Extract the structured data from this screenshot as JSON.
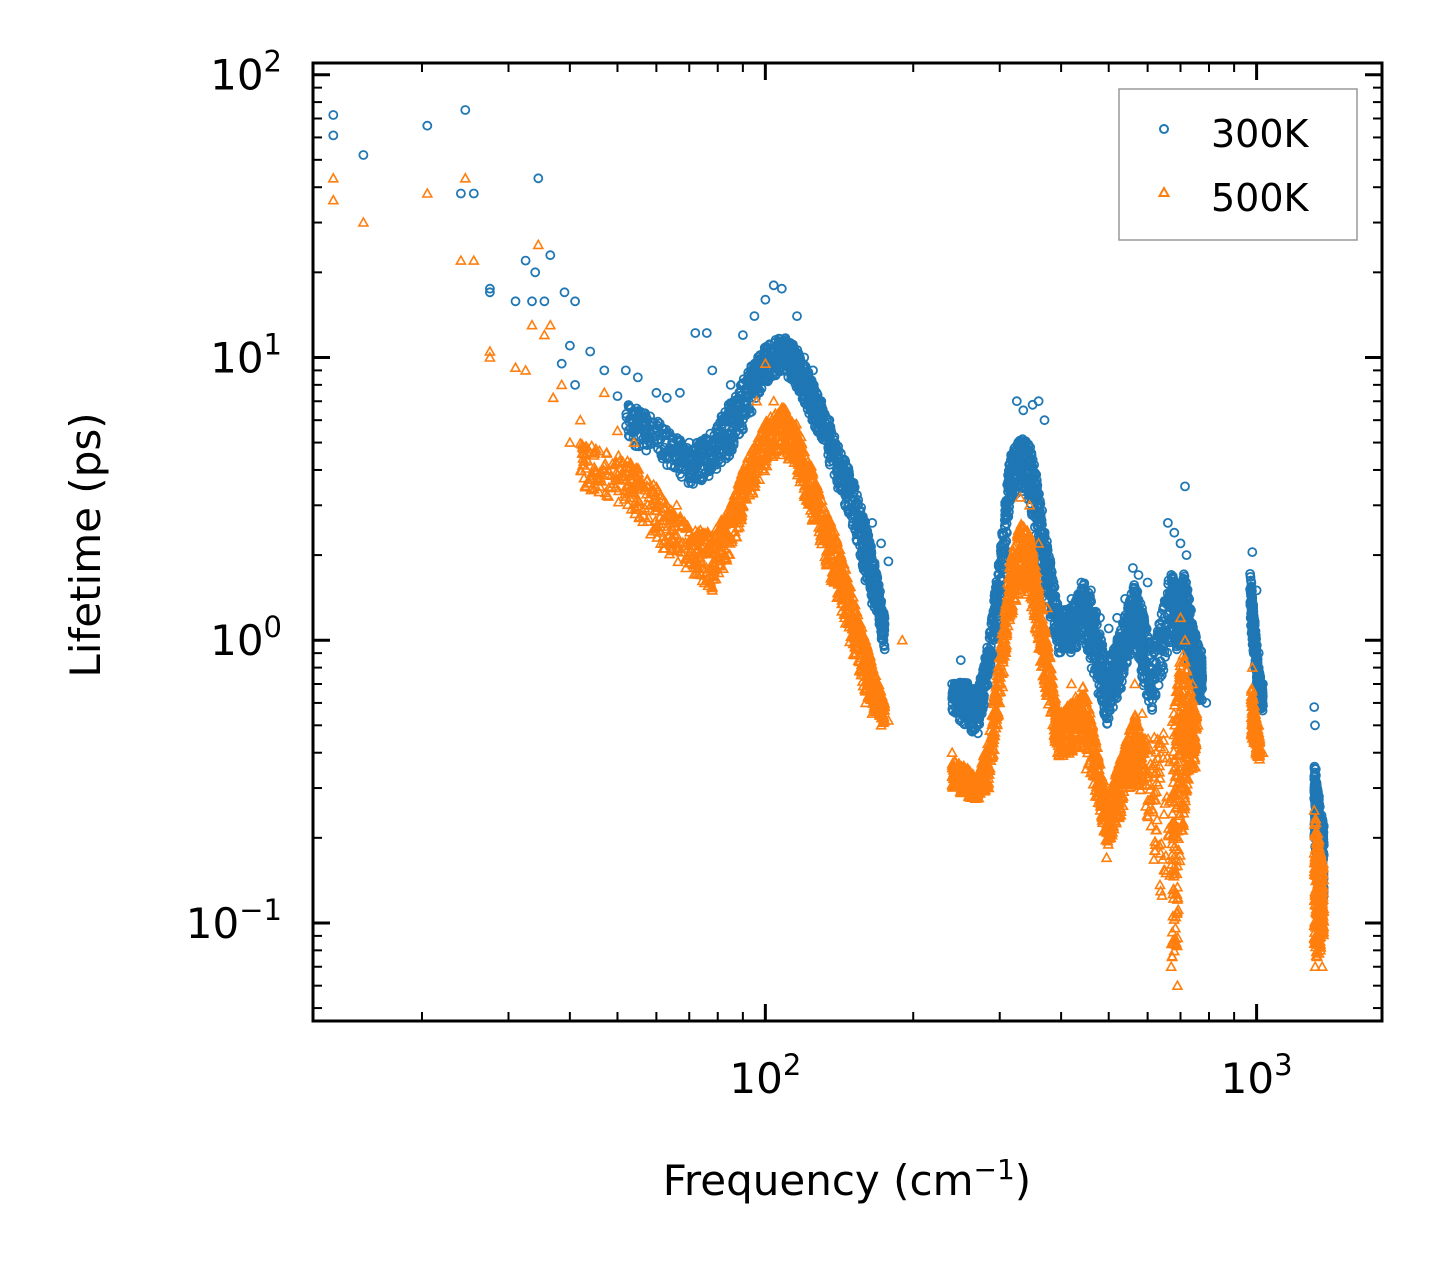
{
  "chart_data": {
    "type": "scatter",
    "title": "",
    "xlabel": "Frequency (cm⁻¹)",
    "xlabel_base": "Frequency (cm",
    "xlabel_sup": "−1",
    "xlabel_close": ")",
    "ylabel": "Lifetime (ps)",
    "xscale": "log",
    "yscale": "log",
    "xlim": [
      12,
      1800
    ],
    "ylim": [
      0.045,
      110
    ],
    "xticks": [
      {
        "base": "10",
        "exp": "2",
        "value": 100
      },
      {
        "base": "10",
        "exp": "3",
        "value": 1000
      }
    ],
    "yticks": [
      {
        "base": "10",
        "exp": "2",
        "value": 100
      },
      {
        "base": "10",
        "exp": "1",
        "value": 10
      },
      {
        "base": "10",
        "exp": "0",
        "value": 1
      },
      {
        "base": "10",
        "exp": "−1",
        "value": 0.1
      }
    ],
    "legend_position": "top-right",
    "series": [
      {
        "name": "300K",
        "color": "#1f77b4",
        "marker": "circle",
        "points": [
          [
            13.2,
            72
          ],
          [
            13.2,
            61
          ],
          [
            15.2,
            52
          ],
          [
            20.5,
            66
          ],
          [
            24.5,
            75
          ],
          [
            24,
            38
          ],
          [
            25.5,
            38
          ],
          [
            27.5,
            17.5
          ],
          [
            27.5,
            17
          ],
          [
            31,
            15.8
          ],
          [
            32.5,
            22
          ],
          [
            33.5,
            15.8
          ],
          [
            34,
            20
          ],
          [
            34.5,
            43
          ],
          [
            35.5,
            15.8
          ],
          [
            36.5,
            23
          ],
          [
            39,
            17
          ],
          [
            41,
            15.8
          ],
          [
            38.5,
            9.5
          ],
          [
            40,
            11
          ],
          [
            41,
            8
          ],
          [
            44,
            10.5
          ],
          [
            47,
            9
          ],
          [
            50,
            7.3
          ],
          [
            52,
            9
          ],
          [
            55,
            8.5
          ],
          [
            60,
            7.5
          ],
          [
            63,
            7.2
          ],
          [
            67,
            7.5
          ],
          [
            70,
            5
          ],
          [
            72,
            12.2
          ],
          [
            76,
            12.2
          ],
          [
            78,
            9
          ],
          [
            82,
            6
          ],
          [
            85,
            8
          ],
          [
            90,
            12
          ],
          [
            95,
            14
          ],
          [
            100,
            16
          ],
          [
            104,
            18
          ],
          [
            108,
            17.5
          ],
          [
            112,
            11
          ],
          [
            116,
            14
          ],
          [
            120,
            10
          ],
          [
            125,
            9
          ],
          [
            130,
            7
          ],
          [
            135,
            6
          ],
          [
            140,
            4
          ],
          [
            148,
            3.5
          ],
          [
            155,
            2.7
          ],
          [
            165,
            2.6
          ],
          [
            172,
            2.2
          ],
          [
            178,
            1.9
          ],
          [
            240,
            0.7
          ],
          [
            250,
            0.85
          ],
          [
            260,
            0.6
          ],
          [
            280,
            0.7
          ],
          [
            300,
            1.5
          ],
          [
            315,
            4
          ],
          [
            325,
            7
          ],
          [
            335,
            6.5
          ],
          [
            350,
            6.8
          ],
          [
            360,
            7
          ],
          [
            370,
            6
          ],
          [
            395,
            1.3
          ],
          [
            420,
            1.4
          ],
          [
            440,
            1.6
          ],
          [
            460,
            1.5
          ],
          [
            480,
            1.2
          ],
          [
            500,
            1.1
          ],
          [
            520,
            1.2
          ],
          [
            540,
            1.4
          ],
          [
            560,
            1.8
          ],
          [
            575,
            1.7
          ],
          [
            600,
            1.6
          ],
          [
            660,
            2.6
          ],
          [
            680,
            2.4
          ],
          [
            700,
            2.2
          ],
          [
            715,
            3.5
          ],
          [
            720,
            2
          ],
          [
            740,
            1
          ],
          [
            760,
            0.95
          ],
          [
            790,
            0.6
          ],
          [
            980,
            2.05
          ],
          [
            1000,
            1.5
          ],
          [
            1010,
            0.9
          ],
          [
            1030,
            0.7
          ],
          [
            1310,
            0.58
          ],
          [
            1315,
            0.5
          ],
          [
            1320,
            0.35
          ],
          [
            1340,
            0.28
          ],
          [
            1360,
            0.22
          ]
        ],
        "bands": [
          [
            40,
            10,
            6.5
          ],
          [
            52,
            7,
            5
          ],
          [
            60,
            6,
            4.5
          ],
          [
            70,
            4.8,
            3.5
          ],
          [
            78,
            5.5,
            3.8
          ],
          [
            85,
            7,
            4.5
          ],
          [
            92,
            9,
            6
          ],
          [
            100,
            11,
            8
          ],
          [
            108,
            12,
            9
          ],
          [
            115,
            11,
            8
          ],
          [
            122,
            9,
            6.5
          ],
          [
            130,
            7,
            5
          ],
          [
            140,
            5,
            3.5
          ],
          [
            150,
            3.8,
            2.6
          ],
          [
            160,
            2.6,
            1.6
          ],
          [
            168,
            1.8,
            1.2
          ],
          [
            175,
            1.2,
            0.9
          ],
          [
            240,
            0.7,
            0.55
          ],
          [
            255,
            0.72,
            0.5
          ],
          [
            270,
            0.65,
            0.45
          ],
          [
            285,
            1.0,
            0.7
          ],
          [
            300,
            2.0,
            1.3
          ],
          [
            315,
            4.5,
            3
          ],
          [
            330,
            5.2,
            3.5
          ],
          [
            345,
            5.0,
            3
          ],
          [
            360,
            3.5,
            2
          ],
          [
            375,
            2.2,
            1.3
          ],
          [
            395,
            1.3,
            0.9
          ],
          [
            420,
            1.3,
            0.9
          ],
          [
            445,
            1.6,
            1.0
          ],
          [
            470,
            1.3,
            0.7
          ],
          [
            495,
            0.8,
            0.5
          ],
          [
            520,
            1.0,
            0.6
          ],
          [
            545,
            1.3,
            0.8
          ],
          [
            565,
            1.6,
            1.0
          ],
          [
            585,
            1.3,
            0.7
          ],
          [
            615,
            0.9,
            0.55
          ],
          [
            670,
            1.8,
            1.0
          ],
          [
            690,
            1.5,
            0.9
          ],
          [
            710,
            1.8,
            1.0
          ],
          [
            730,
            1.4,
            0.8
          ],
          [
            755,
            1.0,
            0.6
          ],
          [
            775,
            0.9,
            0.6
          ],
          [
            970,
            1.8,
            1.2
          ],
          [
            990,
            1.2,
            0.8
          ],
          [
            1010,
            0.8,
            0.6
          ],
          [
            1030,
            0.65,
            0.55
          ],
          [
            1310,
            0.38,
            0.2
          ],
          [
            1330,
            0.3,
            0.15
          ],
          [
            1350,
            0.25,
            0.12
          ],
          [
            1370,
            0.22,
            0.12
          ]
        ]
      },
      {
        "name": "500K",
        "color": "#ff7f0e",
        "marker": "triangle",
        "points": [
          [
            13.2,
            43
          ],
          [
            13.2,
            36
          ],
          [
            15.2,
            30
          ],
          [
            20.5,
            38
          ],
          [
            24,
            22
          ],
          [
            24.5,
            43
          ],
          [
            25.5,
            22
          ],
          [
            27.5,
            10.5
          ],
          [
            27.5,
            10
          ],
          [
            31,
            9.2
          ],
          [
            32.5,
            9
          ],
          [
            33.5,
            13
          ],
          [
            34.5,
            25
          ],
          [
            35.5,
            12
          ],
          [
            36.5,
            13
          ],
          [
            37,
            7.2
          ],
          [
            38.5,
            8
          ],
          [
            40,
            5
          ],
          [
            42,
            6
          ],
          [
            45,
            4
          ],
          [
            47,
            7.5
          ],
          [
            50,
            5.5
          ],
          [
            54,
            5
          ],
          [
            58,
            3.2
          ],
          [
            62,
            2.2
          ],
          [
            66,
            3
          ],
          [
            70,
            2
          ],
          [
            74,
            1.7
          ],
          [
            78,
            1.5
          ],
          [
            82,
            2.5
          ],
          [
            90,
            4
          ],
          [
            96,
            7
          ],
          [
            100,
            9.5
          ],
          [
            104,
            7
          ],
          [
            108,
            6.5
          ],
          [
            112,
            6
          ],
          [
            116,
            5
          ],
          [
            120,
            4
          ],
          [
            126,
            3
          ],
          [
            132,
            2.3
          ],
          [
            138,
            1.6
          ],
          [
            145,
            1.2
          ],
          [
            152,
            0.9
          ],
          [
            160,
            0.6
          ],
          [
            165,
            0.55
          ],
          [
            172,
            0.5
          ],
          [
            178,
            0.52
          ],
          [
            190,
            1.0
          ],
          [
            240,
            0.4
          ],
          [
            255,
            0.35
          ],
          [
            270,
            0.28
          ],
          [
            285,
            0.3
          ],
          [
            300,
            0.6
          ],
          [
            315,
            1.8
          ],
          [
            330,
            3.2
          ],
          [
            345,
            3.0
          ],
          [
            360,
            2.2
          ],
          [
            375,
            1.3
          ],
          [
            390,
            0.5
          ],
          [
            420,
            0.7
          ],
          [
            450,
            0.35
          ],
          [
            470,
            0.28
          ],
          [
            495,
            0.17
          ],
          [
            520,
            0.28
          ],
          [
            545,
            0.42
          ],
          [
            565,
            0.7
          ],
          [
            585,
            0.55
          ],
          [
            670,
            0.07
          ],
          [
            690,
            0.06
          ],
          [
            700,
            1.2
          ],
          [
            715,
            1.0
          ],
          [
            740,
            0.7
          ],
          [
            760,
            0.5
          ],
          [
            980,
            0.8
          ],
          [
            1010,
            0.5
          ],
          [
            1030,
            0.4
          ],
          [
            1310,
            0.25
          ],
          [
            1340,
            0.09
          ],
          [
            1360,
            0.07
          ]
        ],
        "bands": [
          [
            42,
            5,
            3.5
          ],
          [
            52,
            4.5,
            3
          ],
          [
            60,
            3.5,
            2.2
          ],
          [
            70,
            2.5,
            1.7
          ],
          [
            78,
            2.4,
            1.5
          ],
          [
            85,
            3.0,
            2
          ],
          [
            92,
            4.5,
            3
          ],
          [
            100,
            6,
            4
          ],
          [
            108,
            6.8,
            4.5
          ],
          [
            115,
            6,
            4
          ],
          [
            122,
            4.5,
            3
          ],
          [
            130,
            3.2,
            2.1
          ],
          [
            140,
            2.3,
            1.4
          ],
          [
            150,
            1.5,
            0.9
          ],
          [
            160,
            1.0,
            0.65
          ],
          [
            168,
            0.75,
            0.55
          ],
          [
            175,
            0.6,
            0.5
          ],
          [
            240,
            0.38,
            0.3
          ],
          [
            255,
            0.36,
            0.28
          ],
          [
            270,
            0.33,
            0.27
          ],
          [
            285,
            0.45,
            0.3
          ],
          [
            300,
            0.9,
            0.55
          ],
          [
            315,
            1.9,
            1.2
          ],
          [
            330,
            2.6,
            1.5
          ],
          [
            345,
            2.4,
            1.4
          ],
          [
            360,
            1.6,
            0.9
          ],
          [
            375,
            1.0,
            0.6
          ],
          [
            395,
            0.55,
            0.38
          ],
          [
            420,
            0.6,
            0.4
          ],
          [
            445,
            0.7,
            0.42
          ],
          [
            470,
            0.45,
            0.28
          ],
          [
            495,
            0.28,
            0.18
          ],
          [
            520,
            0.35,
            0.22
          ],
          [
            545,
            0.45,
            0.28
          ],
          [
            565,
            0.55,
            0.33
          ],
          [
            585,
            0.45,
            0.28
          ],
          [
            670,
            0.5,
            0.07
          ],
          [
            690,
            0.8,
            0.07
          ],
          [
            710,
            0.9,
            0.2
          ],
          [
            730,
            0.7,
            0.35
          ],
          [
            755,
            0.55,
            0.35
          ],
          [
            975,
            0.7,
            0.45
          ],
          [
            995,
            0.55,
            0.4
          ],
          [
            1015,
            0.45,
            0.37
          ],
          [
            1310,
            0.25,
            0.07
          ],
          [
            1330,
            0.22,
            0.07
          ],
          [
            1350,
            0.18,
            0.08
          ],
          [
            1370,
            0.16,
            0.09
          ]
        ]
      }
    ]
  }
}
